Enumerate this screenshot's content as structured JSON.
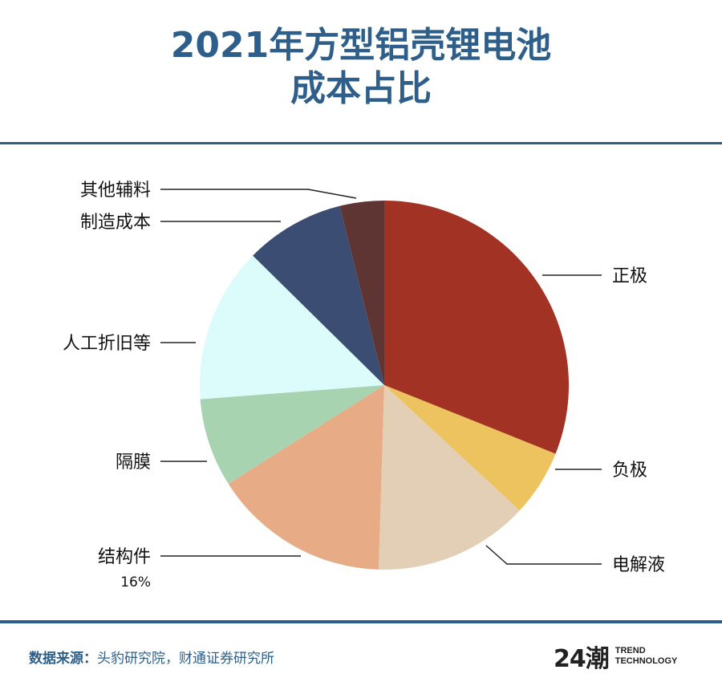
{
  "title": {
    "line1": "2021年方型铝壳锂电池",
    "line2": "成本占比"
  },
  "chart_data": {
    "type": "pie",
    "title": "2021年方型铝壳锂电池成本占比",
    "slices": [
      {
        "label": "正极",
        "value": 32,
        "value_label": "",
        "color": "#a13224"
      },
      {
        "label": "负极",
        "value": 6,
        "value_label": "",
        "color": "#ecc35e"
      },
      {
        "label": "电解液",
        "value": 14,
        "value_label": "",
        "color": "#e3cfb6"
      },
      {
        "label": "结构件",
        "value": 16,
        "value_label": "16%",
        "color": "#e7ab86"
      },
      {
        "label": "隔膜",
        "value": 8,
        "value_label": "",
        "color": "#a8d3b0"
      },
      {
        "label": "人工折旧等",
        "value": 14,
        "value_label": "",
        "color": "#dcfbfb"
      },
      {
        "label": "制造成本",
        "value": 9,
        "value_label": "",
        "color": "#3b4d72"
      },
      {
        "label": "其他辅料",
        "value": 4,
        "value_label": "",
        "color": "#5e3532"
      }
    ]
  },
  "footer": {
    "source_label": "数据来源：",
    "source_text": "头豹研究院，财通证券研究所"
  },
  "logo": {
    "mark": "24潮",
    "line1": "TREND",
    "line2": "TECHNOLOGY"
  }
}
